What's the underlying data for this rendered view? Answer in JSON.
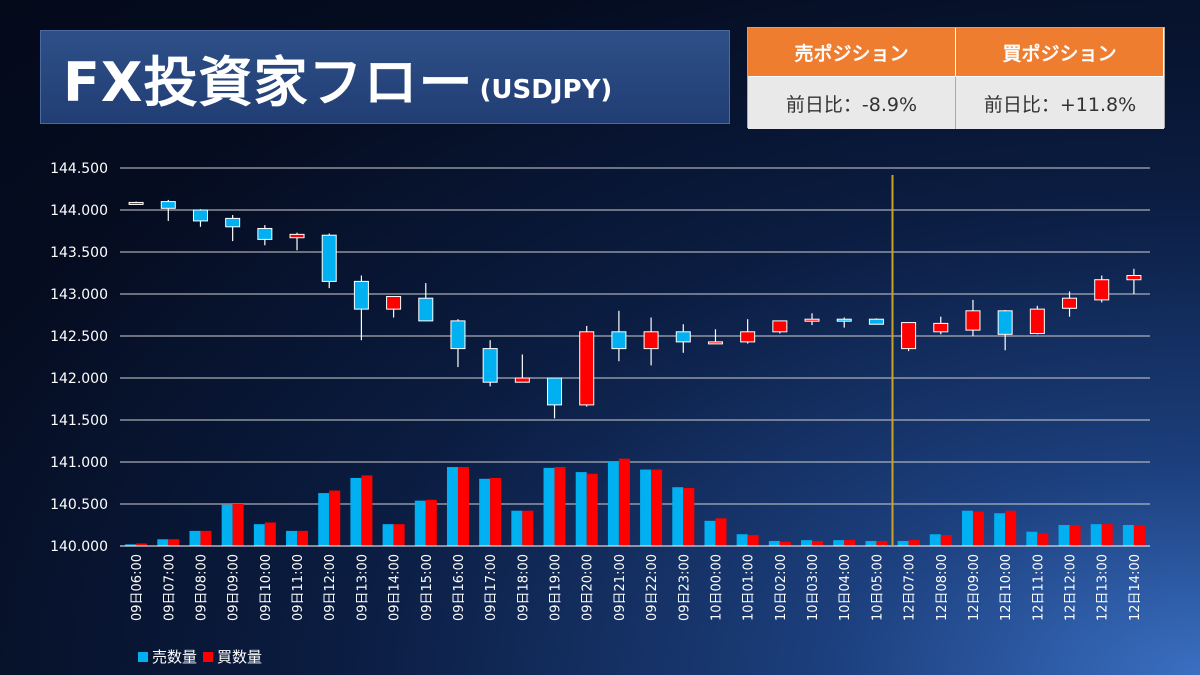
{
  "header": {
    "title_main": "FX投資家フロー",
    "title_sub": "(USDJPY)"
  },
  "positions": {
    "sell_label": "売ポジション",
    "buy_label": "買ポジション",
    "sell_change": "前日比：-8.9%",
    "buy_change": "前日比：+11.8%"
  },
  "legend": {
    "sell_label": "売数量",
    "buy_label": "買数量"
  },
  "colors": {
    "up": "#ff0000",
    "down": "#00b0f0",
    "grid": "#d0d0d0",
    "day_divider": "#c9a227"
  },
  "chart_data": {
    "type": "candlestick",
    "title": "",
    "ylim": [
      140.0,
      144.5
    ],
    "yticks": [
      "140.000",
      "140.500",
      "141.000",
      "141.500",
      "142.000",
      "142.500",
      "143.000",
      "143.500",
      "144.000",
      "144.500"
    ],
    "categories": [
      "09日06:00",
      "09日07:00",
      "09日08:00",
      "09日09:00",
      "09日10:00",
      "09日11:00",
      "09日12:00",
      "09日13:00",
      "09日14:00",
      "09日15:00",
      "09日16:00",
      "09日17:00",
      "09日18:00",
      "09日19:00",
      "09日20:00",
      "09日21:00",
      "09日22:00",
      "09日23:00",
      "10日00:00",
      "10日01:00",
      "10日02:00",
      "10日03:00",
      "10日04:00",
      "10日05:00",
      "12日07:00",
      "12日08:00",
      "12日09:00",
      "12日10:00",
      "12日11:00",
      "12日12:00",
      "12日13:00",
      "12日14:00"
    ],
    "ohlc": [
      [
        144.09,
        144.1,
        144.08,
        144.09
      ],
      [
        144.1,
        144.12,
        143.87,
        144.02
      ],
      [
        144.0,
        144.01,
        143.8,
        143.87
      ],
      [
        143.9,
        143.94,
        143.63,
        143.8
      ],
      [
        143.78,
        143.82,
        143.58,
        143.65
      ],
      [
        143.67,
        143.73,
        143.52,
        143.71
      ],
      [
        143.7,
        143.72,
        143.07,
        143.15
      ],
      [
        143.15,
        143.22,
        142.45,
        142.82
      ],
      [
        142.82,
        142.97,
        142.72,
        142.97
      ],
      [
        142.95,
        143.13,
        142.68,
        142.68
      ],
      [
        142.68,
        142.7,
        142.13,
        142.35
      ],
      [
        142.35,
        142.45,
        141.9,
        141.95
      ],
      [
        141.95,
        142.28,
        141.95,
        142.0
      ],
      [
        142.0,
        142.0,
        141.52,
        141.68
      ],
      [
        141.68,
        142.62,
        141.66,
        142.55
      ],
      [
        142.55,
        142.8,
        142.2,
        142.35
      ],
      [
        142.35,
        142.72,
        142.15,
        142.55
      ],
      [
        142.55,
        142.64,
        142.3,
        142.43
      ],
      [
        142.43,
        142.58,
        142.41,
        142.43
      ],
      [
        142.43,
        142.7,
        142.41,
        142.55
      ],
      [
        142.55,
        142.68,
        142.53,
        142.68
      ],
      [
        142.7,
        142.77,
        142.63,
        142.7
      ],
      [
        142.7,
        142.72,
        142.6,
        142.68
      ],
      [
        142.7,
        142.71,
        142.64,
        142.64
      ],
      [
        142.35,
        142.66,
        142.32,
        142.66
      ],
      [
        142.55,
        142.73,
        142.52,
        142.65
      ],
      [
        142.57,
        142.93,
        142.5,
        142.8
      ],
      [
        142.8,
        142.81,
        142.33,
        142.52
      ],
      [
        142.53,
        142.86,
        142.52,
        142.82
      ],
      [
        142.83,
        143.03,
        142.73,
        142.95
      ],
      [
        142.93,
        143.22,
        142.9,
        143.17
      ],
      [
        143.17,
        143.3,
        143.0,
        143.22
      ]
    ],
    "series": [
      {
        "name": "売数量",
        "values": [
          140.02,
          140.08,
          140.18,
          140.49,
          140.26,
          140.18,
          140.63,
          140.81,
          140.26,
          140.54,
          140.94,
          140.8,
          140.42,
          140.93,
          140.88,
          141.0,
          140.91,
          140.7,
          140.3,
          140.14,
          140.06,
          140.07,
          140.07,
          140.06,
          140.06,
          140.14,
          140.42,
          140.39,
          140.17,
          140.25,
          140.26,
          140.25
        ]
      },
      {
        "name": "買数量",
        "values": [
          140.03,
          140.08,
          140.18,
          140.5,
          140.28,
          140.18,
          140.66,
          140.84,
          140.26,
          140.55,
          140.94,
          140.81,
          140.42,
          140.94,
          140.86,
          141.04,
          140.91,
          140.69,
          140.33,
          140.13,
          140.05,
          140.06,
          140.07,
          140.06,
          140.07,
          140.13,
          140.41,
          140.42,
          140.15,
          140.25,
          140.26,
          140.25
        ]
      }
    ],
    "day_divider_after": "10日05:00",
    "grid": true,
    "legend_position": "bottom-left"
  }
}
